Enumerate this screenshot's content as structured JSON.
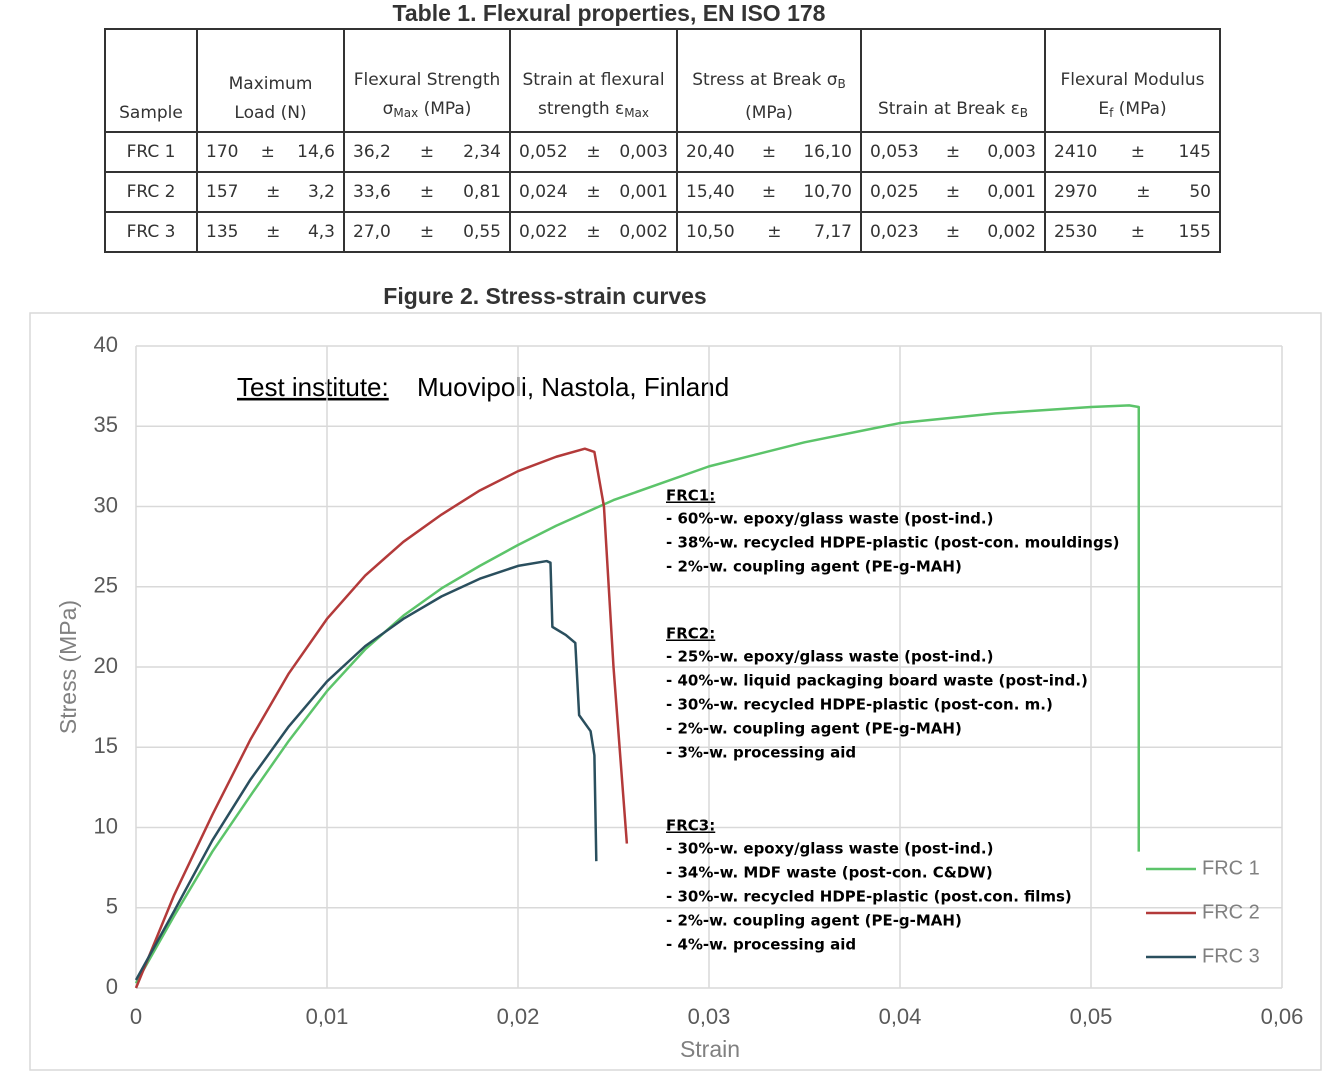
{
  "table": {
    "title": "Table 1. Flexural properties, EN ISO 178",
    "header": [
      {
        "text": "Sample"
      },
      {
        "text": "Maximum Load (N)"
      },
      {
        "text": "Flexural Strength σ",
        "sub": "Max",
        "tail": "(MPa)"
      },
      {
        "text": "Strain at flexural strength ε",
        "sub": "Max"
      },
      {
        "text": "Stress at Break σ",
        "sub": "B",
        "tail": "(MPa)"
      },
      {
        "text": "Strain at Break ε",
        "sub": "B"
      },
      {
        "text": "Flexural Modulus E",
        "sub": "f",
        "tail": "(MPa)"
      }
    ],
    "rows": [
      {
        "sample": "FRC 1",
        "cells": [
          [
            "170",
            "±",
            "14,6"
          ],
          [
            "36,2",
            "±",
            "2,34"
          ],
          [
            "0,052",
            "±",
            "0,003"
          ],
          [
            "20,40",
            "±",
            "16,10"
          ],
          [
            "0,053",
            "±",
            "0,003"
          ],
          [
            "2410",
            "±",
            "145"
          ]
        ]
      },
      {
        "sample": "FRC 2",
        "cells": [
          [
            "157",
            "±",
            "3,2"
          ],
          [
            "33,6",
            "±",
            "0,81"
          ],
          [
            "0,024",
            "±",
            "0,001"
          ],
          [
            "15,40",
            "±",
            "10,70"
          ],
          [
            "0,025",
            "±",
            "0,001"
          ],
          [
            "2970",
            "±",
            "50"
          ]
        ]
      },
      {
        "sample": "FRC 3",
        "cells": [
          [
            "135",
            "±",
            "4,3"
          ],
          [
            "27,0",
            "±",
            "0,55"
          ],
          [
            "0,022",
            "±",
            "0,002"
          ],
          [
            "10,50",
            "±",
            "7,17"
          ],
          [
            "0,023",
            "±",
            "0,002"
          ],
          [
            "2530",
            "±",
            "155"
          ]
        ]
      }
    ]
  },
  "chart_data": {
    "type": "line",
    "title": "Figure 2. Stress-strain curves",
    "xlabel": "Strain",
    "ylabel": "Stress (MPa)",
    "xlim": [
      0,
      0.06
    ],
    "ylim": [
      0,
      40
    ],
    "xticks": [
      0,
      {
        "value": 0.01,
        "label": "0,01"
      },
      {
        "value": 0.02,
        "label": "0,02"
      },
      {
        "value": 0.03,
        "label": "0,03"
      },
      {
        "value": 0.04,
        "label": "0,04"
      },
      {
        "value": 0.05,
        "label": "0,05"
      },
      {
        "value": 0.06,
        "label": "0,06"
      }
    ],
    "yticks": [
      0,
      5,
      10,
      15,
      20,
      25,
      30,
      35,
      40
    ],
    "grid": true,
    "legend": "lower right",
    "series": [
      {
        "name": "FRC 1",
        "color": "#5cc46a",
        "x": [
          0,
          0.002,
          0.004,
          0.006,
          0.008,
          0.01,
          0.012,
          0.014,
          0.016,
          0.018,
          0.02,
          0.022,
          0.025,
          0.03,
          0.035,
          0.04,
          0.045,
          0.05,
          0.052,
          0.0525,
          0.0525
        ],
        "values": [
          0.3,
          4.5,
          8.5,
          12,
          15.4,
          18.5,
          21.1,
          23.2,
          24.9,
          26.3,
          27.6,
          28.8,
          30.4,
          32.5,
          34.0,
          35.2,
          35.8,
          36.2,
          36.3,
          36.2,
          8.5
        ]
      },
      {
        "name": "FRC 2",
        "color": "#b33a3a",
        "x": [
          0,
          0.002,
          0.004,
          0.006,
          0.008,
          0.01,
          0.012,
          0.014,
          0.016,
          0.018,
          0.02,
          0.022,
          0.0235,
          0.024,
          0.0245,
          0.025,
          0.0257
        ],
        "values": [
          0,
          5.8,
          10.8,
          15.5,
          19.6,
          23.0,
          25.7,
          27.8,
          29.5,
          31.0,
          32.2,
          33.1,
          33.6,
          33.4,
          30,
          20,
          9.0
        ]
      },
      {
        "name": "FRC 3",
        "color": "#2a4f5e",
        "x": [
          0,
          0.002,
          0.004,
          0.006,
          0.008,
          0.01,
          0.012,
          0.014,
          0.016,
          0.018,
          0.02,
          0.0215,
          0.0217,
          0.0218,
          0.0225,
          0.023,
          0.0232,
          0.0238,
          0.024,
          0.0241
        ],
        "values": [
          0.5,
          4.8,
          9.2,
          13,
          16.3,
          19.1,
          21.3,
          23.0,
          24.4,
          25.5,
          26.3,
          26.6,
          26.5,
          22.5,
          22.0,
          21.5,
          17,
          16,
          14.5,
          7.9
        ]
      }
    ],
    "test_institute": {
      "label": "Test institute:",
      "text": "Muovipoli, Nastola, Finland"
    },
    "annotations": [
      {
        "title": "FRC1:",
        "lines": [
          "- 60%-w. epoxy/glass waste (post-ind.)",
          "- 38%-w. recycled HDPE-plastic (post-con. mouldings)",
          "- 2%-w. coupling agent (PE-g-MAH)"
        ]
      },
      {
        "title": "FRC2:",
        "lines": [
          "- 25%-w. epoxy/glass waste (post-ind.)",
          "- 40%-w. liquid packaging board waste (post-ind.)",
          "- 30%-w. recycled HDPE-plastic (post-con. m.)",
          "- 2%-w. coupling agent (PE-g-MAH)",
          "- 3%-w. processing aid"
        ]
      },
      {
        "title": "FRC3:",
        "lines": [
          "- 30%-w. epoxy/glass waste (post-ind.)",
          "- 34%-w. MDF waste (post-con. C&DW)",
          "- 30%-w. recycled HDPE-plastic (post.con. films)",
          "- 2%-w. coupling agent (PE-g-MAH)",
          "- 4%-w. processing aid"
        ]
      }
    ]
  }
}
